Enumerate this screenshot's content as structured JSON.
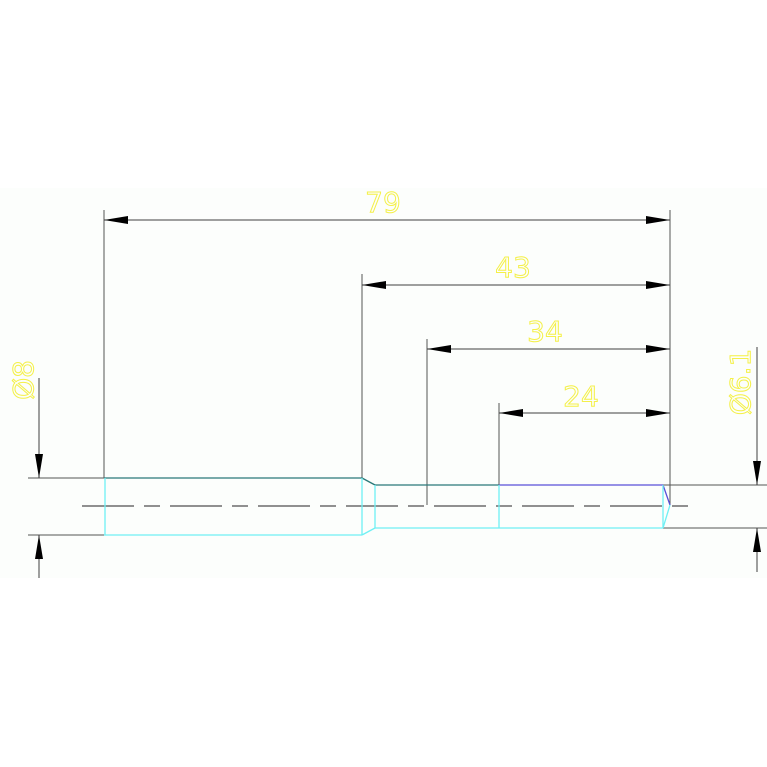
{
  "colors": {
    "background": "#fcfefc",
    "dimension_line": "#404040",
    "dimension_text": "#f4f04a",
    "outline_top": "#2a7878",
    "outline_cyan": "#6ff0f4",
    "outline_blue": "#5a50d8",
    "centerline": "#909090"
  },
  "dimensions": {
    "length_total": "79",
    "length_43": "43",
    "length_34": "34",
    "length_24": "24",
    "diameter_left": "Ø8",
    "diameter_right": "Ø6.1"
  }
}
